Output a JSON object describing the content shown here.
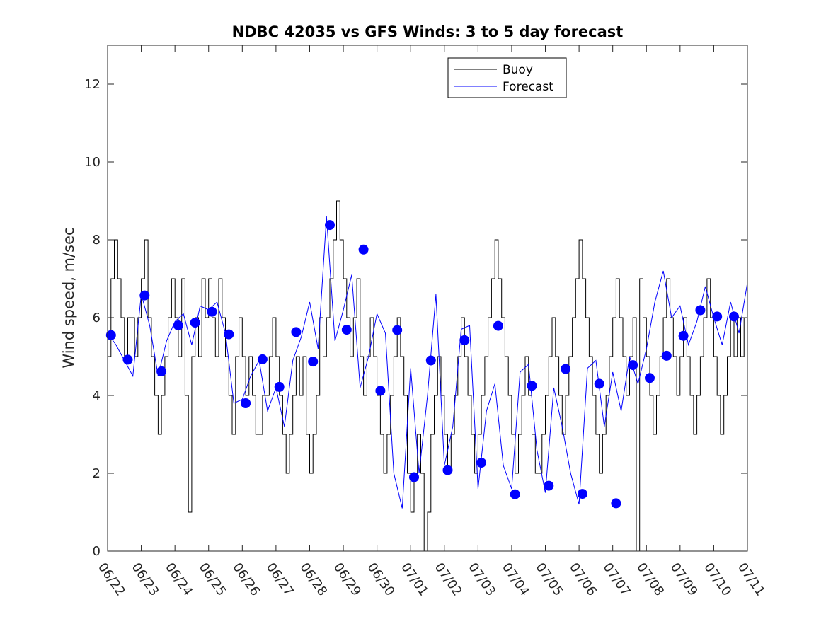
{
  "chart_data": {
    "type": "line",
    "title": "NDBC 42035 vs GFS Winds: 3 to 5 day forecast",
    "xlabel": "",
    "ylabel": "Wind speed, m/sec",
    "xlim": [
      "06/22",
      "07/11"
    ],
    "ylim": [
      0,
      13
    ],
    "yticks": [
      0,
      2,
      4,
      6,
      8,
      10,
      12
    ],
    "xticks": [
      "06/22",
      "06/23",
      "06/24",
      "06/25",
      "06/26",
      "06/27",
      "06/28",
      "06/29",
      "06/30",
      "07/01",
      "07/02",
      "07/03",
      "07/04",
      "07/05",
      "07/06",
      "07/07",
      "07/08",
      "07/09",
      "07/10",
      "07/11"
    ],
    "grid": false,
    "legend": {
      "location": "top-center",
      "entries": [
        "Buoy",
        "Forecast"
      ]
    },
    "colors": {
      "buoy": "#000000",
      "forecast": "#0000ff",
      "markers": "#0000ff"
    },
    "series": [
      {
        "name": "Buoy",
        "x_days": [
          0.0,
          0.1,
          0.2,
          0.3,
          0.4,
          0.5,
          0.6,
          0.7,
          0.8,
          0.9,
          1.0,
          1.1,
          1.2,
          1.3,
          1.4,
          1.5,
          1.6,
          1.7,
          1.8,
          1.9,
          2.0,
          2.1,
          2.2,
          2.3,
          2.4,
          2.5,
          2.6,
          2.7,
          2.8,
          2.9,
          3.0,
          3.1,
          3.2,
          3.3,
          3.4,
          3.5,
          3.6,
          3.7,
          3.8,
          3.9,
          4.0,
          4.1,
          4.2,
          4.3,
          4.4,
          4.5,
          4.6,
          4.7,
          4.8,
          4.9,
          5.0,
          5.1,
          5.2,
          5.3,
          5.4,
          5.5,
          5.6,
          5.7,
          5.8,
          5.9,
          6.0,
          6.1,
          6.2,
          6.3,
          6.4,
          6.5,
          6.6,
          6.7,
          6.8,
          6.9,
          7.0,
          7.1,
          7.2,
          7.3,
          7.4,
          7.5,
          7.6,
          7.7,
          7.8,
          7.9,
          8.0,
          8.1,
          8.2,
          8.3,
          8.4,
          8.5,
          8.6,
          8.7,
          8.8,
          8.9,
          9.0,
          9.1,
          9.2,
          9.3,
          9.4,
          9.5,
          9.6,
          9.7,
          9.8,
          9.9,
          10.0,
          10.1,
          10.2,
          10.3,
          10.4,
          10.5,
          10.6,
          10.7,
          10.8,
          10.9,
          11.0,
          11.1,
          11.2,
          11.3,
          11.4,
          11.5,
          11.6,
          11.7,
          11.8,
          11.9,
          12.0,
          12.1,
          12.2,
          12.3,
          12.4,
          12.5,
          12.6,
          12.7,
          12.8,
          12.9,
          13.0,
          13.1,
          13.2,
          13.3,
          13.4,
          13.5,
          13.6,
          13.7,
          13.8,
          13.9,
          14.0,
          14.1,
          14.2,
          14.3,
          14.4,
          14.5,
          14.6,
          14.7,
          14.8,
          14.9,
          15.0,
          15.1,
          15.2,
          15.3,
          15.4,
          15.5,
          15.6,
          15.7,
          15.8,
          15.9,
          16.0,
          16.1,
          16.2,
          16.3,
          16.4,
          16.5,
          16.6,
          16.7,
          16.8,
          16.9,
          17.0,
          17.1,
          17.2,
          17.3,
          17.4,
          17.5,
          17.6,
          17.7,
          17.8,
          17.9,
          18.0,
          18.1,
          18.2,
          18.3,
          18.4,
          18.5,
          18.6,
          18.7,
          18.8,
          18.9,
          19.0
        ],
        "values": [
          5,
          7,
          8,
          7,
          6,
          5,
          6,
          6,
          5,
          6,
          7,
          8,
          6,
          5,
          4,
          3,
          4,
          5,
          6,
          7,
          6,
          5,
          7,
          4,
          1,
          5,
          6,
          5,
          7,
          6,
          7,
          6,
          5,
          7,
          6,
          5,
          4,
          3,
          5,
          6,
          5,
          4,
          5,
          4,
          3,
          3,
          4,
          4,
          5,
          6,
          5,
          4,
          3,
          2,
          3,
          4,
          5,
          4,
          5,
          3,
          2,
          3,
          4,
          6,
          5,
          6,
          7,
          8,
          9,
          8,
          7,
          6,
          5,
          6,
          7,
          5,
          4,
          5,
          6,
          5,
          4,
          3,
          2,
          3,
          4,
          5,
          6,
          5,
          4,
          2,
          1,
          2,
          3,
          2,
          0,
          1,
          3,
          4,
          5,
          4,
          3,
          2,
          3,
          4,
          5,
          6,
          5,
          4,
          3,
          2,
          3,
          4,
          5,
          6,
          7,
          8,
          7,
          6,
          5,
          4,
          3,
          2,
          3,
          4,
          5,
          4,
          3,
          2,
          2,
          3,
          4,
          5,
          6,
          5,
          4,
          3,
          4,
          5,
          6,
          7,
          8,
          7,
          6,
          5,
          4,
          3,
          2,
          3,
          4,
          5,
          6,
          7,
          6,
          5,
          4,
          5,
          6,
          0,
          7,
          6,
          5,
          4,
          3,
          4,
          5,
          6,
          7,
          6,
          5,
          4,
          5,
          6,
          5,
          4,
          3,
          4,
          5,
          6,
          7,
          6,
          5,
          4,
          3,
          4,
          5,
          6,
          5,
          6,
          5,
          6,
          5
        ]
      },
      {
        "name": "Forecast",
        "x_days": [
          0.0,
          0.25,
          0.5,
          0.75,
          1.0,
          1.25,
          1.5,
          1.75,
          2.0,
          2.25,
          2.5,
          2.75,
          3.0,
          3.25,
          3.5,
          3.75,
          4.0,
          4.25,
          4.5,
          4.75,
          5.0,
          5.25,
          5.5,
          5.75,
          6.0,
          6.25,
          6.5,
          6.75,
          7.0,
          7.25,
          7.5,
          7.75,
          8.0,
          8.25,
          8.5,
          8.75,
          9.0,
          9.25,
          9.5,
          9.75,
          10.0,
          10.25,
          10.5,
          10.75,
          11.0,
          11.25,
          11.5,
          11.75,
          12.0,
          12.25,
          12.5,
          12.75,
          13.0,
          13.25,
          13.5,
          13.75,
          14.0,
          14.25,
          14.5,
          14.75,
          15.0,
          15.25,
          15.5,
          15.75,
          16.0,
          16.25,
          16.5,
          16.75,
          17.0,
          17.25,
          17.5,
          17.75,
          18.0,
          18.25,
          18.5,
          18.75,
          19.0
        ],
        "values": [
          5.6,
          5.3,
          4.9,
          4.5,
          6.6,
          5.8,
          4.5,
          5.4,
          5.9,
          6.1,
          5.3,
          6.3,
          6.2,
          6.4,
          5.6,
          3.8,
          3.9,
          4.5,
          4.9,
          3.6,
          4.2,
          3.2,
          4.9,
          5.5,
          6.4,
          5.2,
          8.6,
          5.4,
          6.2,
          7.1,
          4.2,
          5.0,
          6.1,
          5.6,
          2.0,
          1.1,
          4.7,
          2.0,
          4.0,
          6.6,
          2.2,
          3.2,
          5.7,
          5.8,
          1.6,
          3.6,
          4.3,
          2.2,
          1.6,
          4.6,
          4.8,
          2.6,
          1.5,
          4.2,
          3.2,
          2.0,
          1.2,
          4.7,
          4.9,
          3.2,
          4.6,
          3.6,
          5.0,
          4.3,
          5.2,
          6.4,
          7.2,
          6.0,
          6.3,
          5.3,
          5.9,
          6.8,
          6.0,
          5.3,
          6.4,
          5.6,
          6.9
        ]
      },
      {
        "name": "",
        "type": "scatter",
        "x_days": [
          0.1,
          0.6,
          1.1,
          1.6,
          2.1,
          2.6,
          3.1,
          3.6,
          4.1,
          4.6,
          5.1,
          5.6,
          6.1,
          6.6,
          7.1,
          7.6,
          8.1,
          8.6,
          9.1,
          9.6,
          10.1,
          10.6,
          11.1,
          11.6,
          12.1,
          12.6,
          13.1,
          13.6,
          14.1,
          14.6,
          15.1,
          15.6,
          16.1,
          16.6,
          17.1,
          17.6,
          18.1,
          18.6
        ],
        "values": [
          5.55,
          4.92,
          6.57,
          4.62,
          5.8,
          5.87,
          6.15,
          5.57,
          3.8,
          4.93,
          4.22,
          5.63,
          4.87,
          8.38,
          5.69,
          7.75,
          4.12,
          5.68,
          1.9,
          4.9,
          2.08,
          5.42,
          2.27,
          5.79,
          1.46,
          4.25,
          1.68,
          4.68,
          1.47,
          4.3,
          1.23,
          4.78,
          4.45,
          5.02,
          5.53,
          6.19,
          6.03,
          6.03
        ]
      }
    ]
  }
}
